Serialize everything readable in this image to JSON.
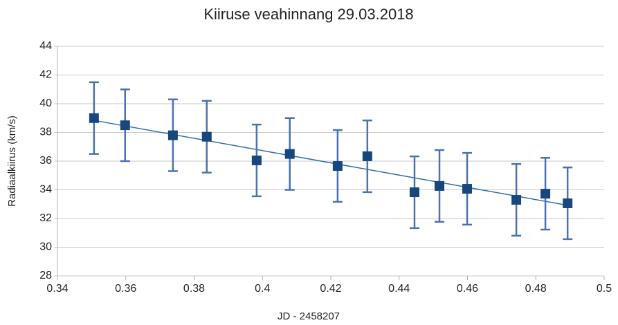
{
  "chart_data": {
    "type": "scatter",
    "title": "Kiiruse veahinnang 29.03.2018",
    "x_label": "JD - 2458207",
    "y_label": "Radiaalkiirus (km/s)",
    "series": [
      {
        "color": "#17477d",
        "error_color": "#4a72b0",
        "x": [
          0.3507,
          0.3598,
          0.3738,
          0.3837,
          0.3983,
          0.408,
          0.422,
          0.4307,
          0.4445,
          0.4518,
          0.4599,
          0.4743,
          0.4828,
          0.4893
        ],
        "values": [
          39.0,
          38.5,
          37.8,
          37.7,
          36.05,
          36.5,
          35.66,
          36.34,
          33.83,
          34.27,
          34.07,
          33.3,
          33.73,
          33.06
        ],
        "errors": [
          2.5,
          2.5,
          2.5,
          2.5,
          2.5,
          2.5,
          2.5,
          2.5,
          2.5,
          2.5,
          2.5,
          2.5,
          2.5,
          2.5
        ]
      }
    ],
    "trendline": {
      "color": "#2e6da4",
      "x": [
        0.3507,
        0.4893
      ],
      "values": [
        38.84,
        32.92
      ]
    },
    "xlim": [
      0.34,
      0.5
    ],
    "xticks": [
      0.34,
      0.36,
      0.38,
      0.4,
      0.42,
      0.44,
      0.46,
      0.48,
      0.5
    ],
    "ylim": [
      28,
      44
    ],
    "yticks": [
      28,
      30,
      32,
      34,
      36,
      38,
      40,
      42,
      44
    ],
    "grid": true
  }
}
